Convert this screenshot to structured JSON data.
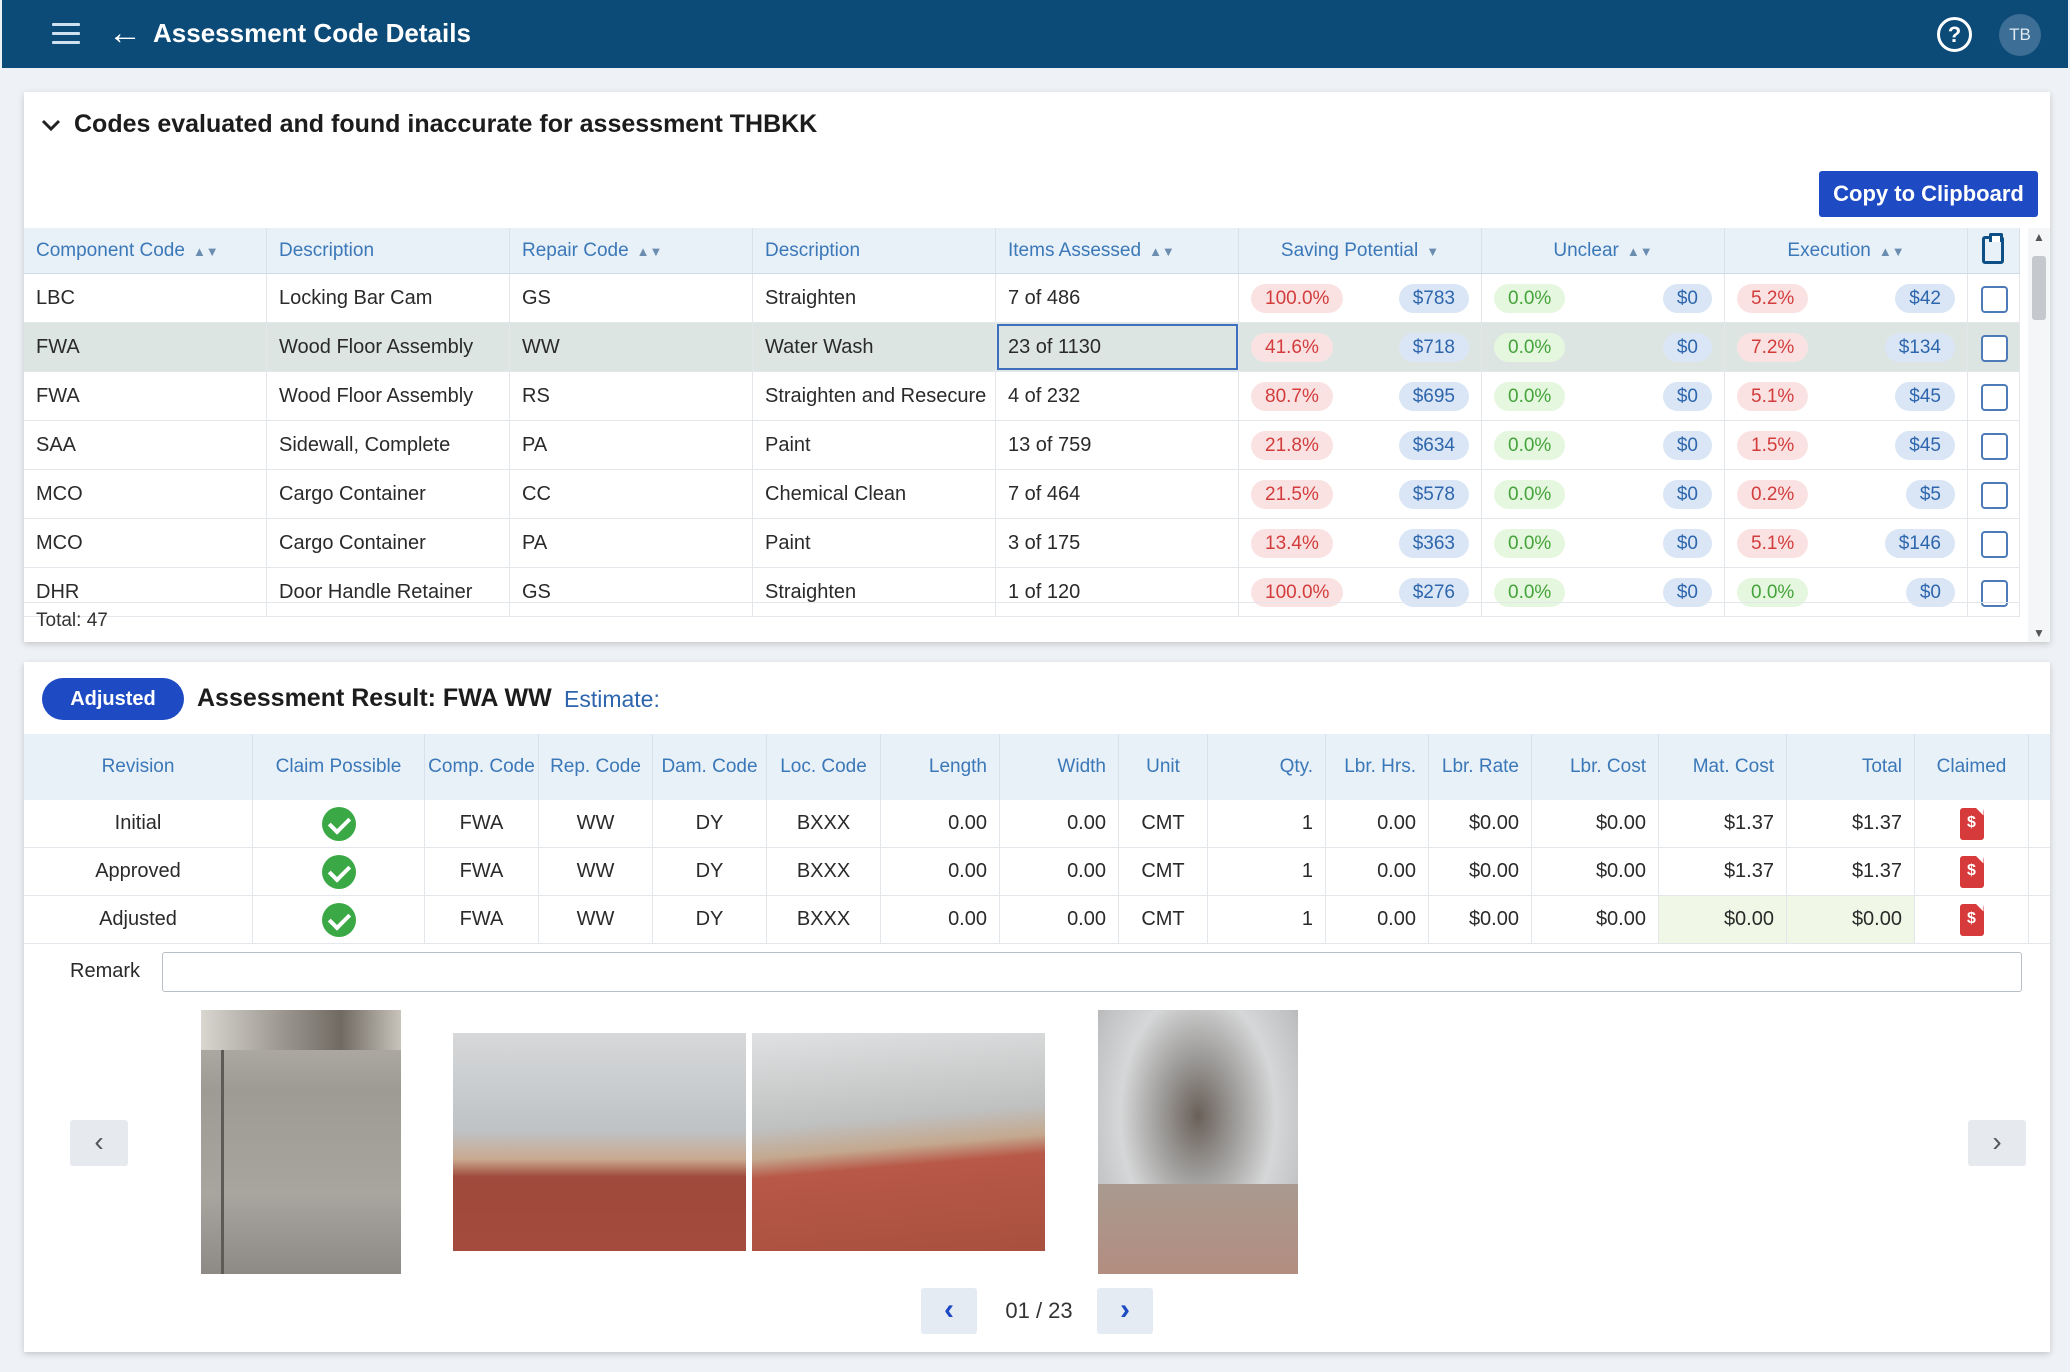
{
  "appbar": {
    "title": "Assessment Code Details",
    "help": "?",
    "avatar": "TB"
  },
  "codes": {
    "heading": "Codes evaluated and found inaccurate for assessment THBKK",
    "copy_label": "Copy to Clipboard",
    "columns": [
      "Component Code",
      "Description",
      "Repair Code",
      "Description",
      "Items Assessed",
      "Saving Potential",
      "Unclear",
      "Execution"
    ],
    "rows": [
      {
        "cc": "LBC",
        "d1": "Locking Bar Cam",
        "rc": "GS",
        "d2": "Straighten",
        "ia": "7 of 486",
        "sp_pct": "100.0%",
        "sp_amt": "$783",
        "un_pct": "0.0%",
        "un_amt": "$0",
        "ex_pct": "5.2%",
        "ex_amt": "$42"
      },
      {
        "cc": "FWA",
        "d1": "Wood Floor Assembly",
        "rc": "WW",
        "d2": "Water Wash",
        "ia": "23 of 1130",
        "sp_pct": "41.6%",
        "sp_amt": "$718",
        "un_pct": "0.0%",
        "un_amt": "$0",
        "ex_pct": "7.2%",
        "ex_amt": "$134"
      },
      {
        "cc": "FWA",
        "d1": "Wood Floor Assembly",
        "rc": "RS",
        "d2": "Straighten and Resecure",
        "ia": "4 of 232",
        "sp_pct": "80.7%",
        "sp_amt": "$695",
        "un_pct": "0.0%",
        "un_amt": "$0",
        "ex_pct": "5.1%",
        "ex_amt": "$45"
      },
      {
        "cc": "SAA",
        "d1": "Sidewall, Complete",
        "rc": "PA",
        "d2": "Paint",
        "ia": "13 of 759",
        "sp_pct": "21.8%",
        "sp_amt": "$634",
        "un_pct": "0.0%",
        "un_amt": "$0",
        "ex_pct": "1.5%",
        "ex_amt": "$45"
      },
      {
        "cc": "MCO",
        "d1": "Cargo Container",
        "rc": "CC",
        "d2": "Chemical Clean",
        "ia": "7 of 464",
        "sp_pct": "21.5%",
        "sp_amt": "$578",
        "un_pct": "0.0%",
        "un_amt": "$0",
        "ex_pct": "0.2%",
        "ex_amt": "$5"
      },
      {
        "cc": "MCO",
        "d1": "Cargo Container",
        "rc": "PA",
        "d2": "Paint",
        "ia": "3 of 175",
        "sp_pct": "13.4%",
        "sp_amt": "$363",
        "un_pct": "0.0%",
        "un_amt": "$0",
        "ex_pct": "5.1%",
        "ex_amt": "$146"
      },
      {
        "cc": "DHR",
        "d1": "Door Handle Retainer",
        "rc": "GS",
        "d2": "Straighten",
        "ia": "1 of 120",
        "sp_pct": "100.0%",
        "sp_amt": "$276",
        "un_pct": "0.0%",
        "un_amt": "$0",
        "ex_pct": "0.0%",
        "ex_amt": "$0"
      }
    ],
    "total": "Total: 47"
  },
  "result": {
    "badge": "Adjusted",
    "title": "Assessment Result: FWA WW",
    "estimate_label": "Estimate:",
    "columns": [
      "Revision",
      "Claim Possible",
      "Comp. Code",
      "Rep. Code",
      "Dam. Code",
      "Loc. Code",
      "Length",
      "Width",
      "Unit",
      "Qty.",
      "Lbr. Hrs.",
      "Lbr. Rate",
      "Lbr. Cost",
      "Mat. Cost",
      "Total",
      "Claimed"
    ],
    "rows": [
      {
        "rev": "Initial",
        "cc": "FWA",
        "rc": "WW",
        "dc": "DY",
        "lc": "BXXX",
        "len": "0.00",
        "wid": "0.00",
        "unit": "CMT",
        "qty": "1",
        "lh": "0.00",
        "lr": "$0.00",
        "lco": "$0.00",
        "mc": "$1.37",
        "tot": "$1.37"
      },
      {
        "rev": "Approved",
        "cc": "FWA",
        "rc": "WW",
        "dc": "DY",
        "lc": "BXXX",
        "len": "0.00",
        "wid": "0.00",
        "unit": "CMT",
        "qty": "1",
        "lh": "0.00",
        "lr": "$0.00",
        "lco": "$0.00",
        "mc": "$1.37",
        "tot": "$1.37"
      },
      {
        "rev": "Adjusted",
        "cc": "FWA",
        "rc": "WW",
        "dc": "DY",
        "lc": "BXXX",
        "len": "0.00",
        "wid": "0.00",
        "unit": "CMT",
        "qty": "1",
        "lh": "0.00",
        "lr": "$0.00",
        "lco": "$0.00",
        "mc": "$0.00",
        "tot": "$0.00"
      }
    ],
    "remark_label": "Remark",
    "remark_value": "",
    "pager": "01 / 23"
  },
  "colors": {
    "appbar": "#0c4a77",
    "primary": "#1e4bc4",
    "header_text": "#3b78b8"
  }
}
